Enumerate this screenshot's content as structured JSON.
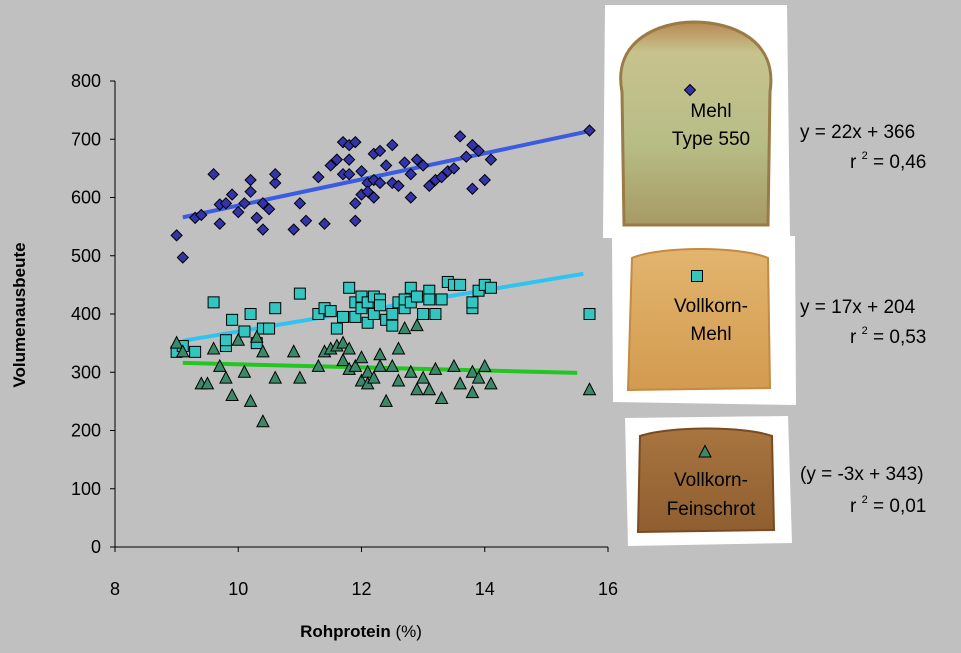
{
  "chart_data": {
    "type": "scatter",
    "xlabel": "Rohprotein",
    "xlabel_unit": "(%)",
    "ylabel": "Volumenausbeute",
    "xlim": [
      8,
      16
    ],
    "ylim": [
      0,
      800
    ],
    "x_ticks": [
      8,
      10,
      12,
      14,
      16
    ],
    "y_ticks": [
      0,
      100,
      200,
      300,
      400,
      500,
      600,
      700,
      800
    ],
    "grid": false,
    "series": [
      {
        "name": "Mehl Type 550",
        "name_lines": [
          "Mehl",
          "Type 550"
        ],
        "marker": "diamond",
        "color": "#3333aa",
        "line_color": "#3b5be0",
        "trend": {
          "x": [
            9.1,
            15.7
          ],
          "y": [
            566,
            714
          ]
        },
        "equation": "y = 22x + 366",
        "r2_prefix": "r",
        "r2_exp": "2",
        "r2_value": "= 0,46",
        "points": [
          [
            9.0,
            535
          ],
          [
            9.1,
            497
          ],
          [
            9.3,
            565
          ],
          [
            9.4,
            570
          ],
          [
            9.6,
            640
          ],
          [
            9.7,
            555
          ],
          [
            9.7,
            588
          ],
          [
            9.8,
            590
          ],
          [
            9.9,
            605
          ],
          [
            10.0,
            575
          ],
          [
            10.1,
            590
          ],
          [
            10.2,
            610
          ],
          [
            10.2,
            630
          ],
          [
            10.3,
            565
          ],
          [
            10.4,
            590
          ],
          [
            10.4,
            545
          ],
          [
            10.5,
            580
          ],
          [
            10.6,
            625
          ],
          [
            10.6,
            640
          ],
          [
            10.9,
            545
          ],
          [
            11.0,
            590
          ],
          [
            11.1,
            560
          ],
          [
            11.3,
            635
          ],
          [
            11.4,
            555
          ],
          [
            11.5,
            655
          ],
          [
            11.6,
            665
          ],
          [
            11.7,
            695
          ],
          [
            11.7,
            640
          ],
          [
            11.8,
            665
          ],
          [
            11.8,
            690
          ],
          [
            11.8,
            640
          ],
          [
            11.9,
            590
          ],
          [
            11.9,
            560
          ],
          [
            11.9,
            695
          ],
          [
            12.0,
            645
          ],
          [
            12.0,
            605
          ],
          [
            12.1,
            625
          ],
          [
            12.1,
            610
          ],
          [
            12.2,
            675
          ],
          [
            12.2,
            630
          ],
          [
            12.2,
            600
          ],
          [
            12.3,
            680
          ],
          [
            12.3,
            625
          ],
          [
            12.4,
            655
          ],
          [
            12.5,
            690
          ],
          [
            12.5,
            625
          ],
          [
            12.6,
            620
          ],
          [
            12.7,
            660
          ],
          [
            12.8,
            640
          ],
          [
            12.8,
            600
          ],
          [
            12.9,
            665
          ],
          [
            13.0,
            655
          ],
          [
            13.1,
            620
          ],
          [
            13.2,
            630
          ],
          [
            13.3,
            635
          ],
          [
            13.4,
            645
          ],
          [
            13.5,
            650
          ],
          [
            13.6,
            705
          ],
          [
            13.7,
            670
          ],
          [
            13.8,
            690
          ],
          [
            13.8,
            615
          ],
          [
            13.9,
            680
          ],
          [
            14.0,
            630
          ],
          [
            14.1,
            665
          ],
          [
            15.7,
            715
          ]
        ]
      },
      {
        "name": "Vollkorn-Mehl",
        "name_lines": [
          "Vollkorn-",
          "Mehl"
        ],
        "marker": "square",
        "color": "#33c6c0",
        "line_color": "#2fc4f0",
        "trend": {
          "x": [
            9.1,
            15.6
          ],
          "y": [
            354,
            469
          ]
        },
        "equation": "y = 17x + 204",
        "r2_prefix": "r",
        "r2_exp": "2",
        "r2_value": "= 0,53",
        "points": [
          [
            9.0,
            335
          ],
          [
            9.1,
            345
          ],
          [
            9.3,
            335
          ],
          [
            9.6,
            420
          ],
          [
            9.8,
            345
          ],
          [
            9.8,
            355
          ],
          [
            9.9,
            390
          ],
          [
            10.1,
            370
          ],
          [
            10.2,
            400
          ],
          [
            10.3,
            350
          ],
          [
            10.4,
            375
          ],
          [
            10.5,
            375
          ],
          [
            10.6,
            410
          ],
          [
            11.0,
            435
          ],
          [
            11.3,
            400
          ],
          [
            11.4,
            410
          ],
          [
            11.5,
            405
          ],
          [
            11.6,
            375
          ],
          [
            11.7,
            395
          ],
          [
            11.8,
            445
          ],
          [
            11.9,
            420
          ],
          [
            11.9,
            395
          ],
          [
            12.0,
            430
          ],
          [
            12.0,
            410
          ],
          [
            12.1,
            420
          ],
          [
            12.1,
            385
          ],
          [
            12.2,
            400
          ],
          [
            12.2,
            430
          ],
          [
            12.3,
            425
          ],
          [
            12.3,
            415
          ],
          [
            12.4,
            390
          ],
          [
            12.5,
            400
          ],
          [
            12.5,
            380
          ],
          [
            12.6,
            420
          ],
          [
            12.7,
            410
          ],
          [
            12.7,
            425
          ],
          [
            12.8,
            445
          ],
          [
            12.8,
            420
          ],
          [
            12.9,
            430
          ],
          [
            13.0,
            400
          ],
          [
            13.1,
            440
          ],
          [
            13.1,
            425
          ],
          [
            13.2,
            400
          ],
          [
            13.3,
            425
          ],
          [
            13.4,
            455
          ],
          [
            13.5,
            450
          ],
          [
            13.6,
            450
          ],
          [
            13.8,
            410
          ],
          [
            13.8,
            420
          ],
          [
            13.9,
            440
          ],
          [
            14.0,
            450
          ],
          [
            14.1,
            445
          ],
          [
            15.7,
            400
          ]
        ]
      },
      {
        "name": "Vollkorn-Feinschrot",
        "name_lines": [
          "Vollkorn-",
          "Feinschrot"
        ],
        "marker": "triangle",
        "color": "#3a8a6a",
        "line_color": "#22c522",
        "trend": {
          "x": [
            9.1,
            15.5
          ],
          "y": [
            316,
            299
          ]
        },
        "equation": "(y = -3x + 343)",
        "r2_prefix": "r",
        "r2_exp": "2",
        "r2_value": "= 0,01",
        "points": [
          [
            9.0,
            350
          ],
          [
            9.1,
            335
          ],
          [
            9.4,
            280
          ],
          [
            9.5,
            280
          ],
          [
            9.6,
            340
          ],
          [
            9.7,
            310
          ],
          [
            9.8,
            290
          ],
          [
            9.9,
            260
          ],
          [
            10.0,
            355
          ],
          [
            10.1,
            300
          ],
          [
            10.2,
            250
          ],
          [
            10.3,
            360
          ],
          [
            10.4,
            335
          ],
          [
            10.4,
            215
          ],
          [
            10.6,
            290
          ],
          [
            10.9,
            335
          ],
          [
            11.0,
            290
          ],
          [
            11.3,
            310
          ],
          [
            11.4,
            335
          ],
          [
            11.5,
            340
          ],
          [
            11.6,
            345
          ],
          [
            11.7,
            350
          ],
          [
            11.7,
            320
          ],
          [
            11.8,
            305
          ],
          [
            11.8,
            340
          ],
          [
            11.9,
            310
          ],
          [
            12.0,
            285
          ],
          [
            12.0,
            325
          ],
          [
            12.1,
            300
          ],
          [
            12.1,
            280
          ],
          [
            12.2,
            290
          ],
          [
            12.3,
            330
          ],
          [
            12.3,
            310
          ],
          [
            12.4,
            250
          ],
          [
            12.5,
            310
          ],
          [
            12.6,
            340
          ],
          [
            12.6,
            285
          ],
          [
            12.7,
            375
          ],
          [
            12.8,
            300
          ],
          [
            12.9,
            380
          ],
          [
            12.9,
            270
          ],
          [
            13.0,
            290
          ],
          [
            13.1,
            270
          ],
          [
            13.2,
            305
          ],
          [
            13.3,
            255
          ],
          [
            13.5,
            310
          ],
          [
            13.6,
            280
          ],
          [
            13.8,
            300
          ],
          [
            13.8,
            265
          ],
          [
            13.9,
            290
          ],
          [
            14.0,
            310
          ],
          [
            14.1,
            280
          ],
          [
            15.7,
            270
          ]
        ]
      }
    ],
    "legend": "right"
  }
}
